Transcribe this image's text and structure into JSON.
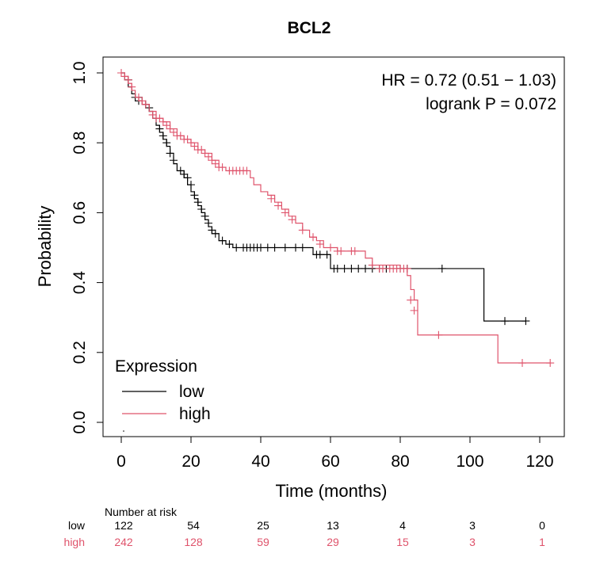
{
  "chart_data": {
    "type": "line",
    "subtype": "kaplan-meier",
    "title": "BCL2",
    "xlabel": "Time (months)",
    "ylabel": "Probability",
    "xlim": [
      0,
      120
    ],
    "ylim": [
      0,
      1
    ],
    "xticks": [
      0,
      20,
      40,
      60,
      80,
      100,
      120
    ],
    "yticks": [
      0.0,
      0.2,
      0.4,
      0.6,
      0.8,
      1.0
    ],
    "ytick_labels": [
      "0.0",
      "0.2",
      "0.4",
      "0.6",
      "0.8",
      "1.0"
    ],
    "annotations": [
      "HR = 0.72 (0.51 − 1.03)",
      "logrank P = 0.072"
    ],
    "legend": {
      "title": "Expression",
      "position": "bottom-left",
      "entries": [
        "low",
        "high"
      ]
    },
    "series": [
      {
        "name": "low",
        "color": "#000000",
        "steps": [
          [
            0,
            1.0
          ],
          [
            1,
            0.98
          ],
          [
            2,
            0.96
          ],
          [
            3,
            0.94
          ],
          [
            4,
            0.93
          ],
          [
            6,
            0.91
          ],
          [
            8,
            0.89
          ],
          [
            9,
            0.87
          ],
          [
            10,
            0.85
          ],
          [
            11,
            0.83
          ],
          [
            12,
            0.81
          ],
          [
            13,
            0.79
          ],
          [
            14,
            0.77
          ],
          [
            15,
            0.74
          ],
          [
            16,
            0.72
          ],
          [
            18,
            0.7
          ],
          [
            19,
            0.68
          ],
          [
            20,
            0.66
          ],
          [
            21,
            0.64
          ],
          [
            22,
            0.62
          ],
          [
            23,
            0.6
          ],
          [
            24,
            0.58
          ],
          [
            25,
            0.56
          ],
          [
            26,
            0.54
          ],
          [
            28,
            0.52
          ],
          [
            30,
            0.51
          ],
          [
            32,
            0.5
          ],
          [
            55,
            0.48
          ],
          [
            60,
            0.44
          ],
          [
            104,
            0.29
          ],
          [
            116,
            0.29
          ]
        ],
        "censored": [
          [
            2,
            0.98
          ],
          [
            4,
            0.93
          ],
          [
            5,
            0.92
          ],
          [
            7,
            0.91
          ],
          [
            8,
            0.9
          ],
          [
            11,
            0.84
          ],
          [
            12,
            0.82
          ],
          [
            13,
            0.8
          ],
          [
            14,
            0.77
          ],
          [
            15,
            0.75
          ],
          [
            17,
            0.72
          ],
          [
            18,
            0.71
          ],
          [
            19,
            0.7
          ],
          [
            20,
            0.68
          ],
          [
            21,
            0.65
          ],
          [
            22,
            0.63
          ],
          [
            23,
            0.61
          ],
          [
            24,
            0.59
          ],
          [
            25,
            0.57
          ],
          [
            26,
            0.55
          ],
          [
            27,
            0.54
          ],
          [
            29,
            0.52
          ],
          [
            31,
            0.51
          ],
          [
            33,
            0.5
          ],
          [
            35,
            0.5
          ],
          [
            36,
            0.5
          ],
          [
            37,
            0.5
          ],
          [
            38,
            0.5
          ],
          [
            39,
            0.5
          ],
          [
            40,
            0.5
          ],
          [
            42,
            0.5
          ],
          [
            44,
            0.5
          ],
          [
            47,
            0.5
          ],
          [
            50,
            0.5
          ],
          [
            52,
            0.5
          ],
          [
            56,
            0.48
          ],
          [
            57,
            0.48
          ],
          [
            59,
            0.48
          ],
          [
            61,
            0.44
          ],
          [
            62,
            0.44
          ],
          [
            64,
            0.44
          ],
          [
            66,
            0.44
          ],
          [
            68,
            0.44
          ],
          [
            70,
            0.44
          ],
          [
            72,
            0.44
          ],
          [
            74,
            0.44
          ],
          [
            76,
            0.44
          ],
          [
            80,
            0.44
          ],
          [
            82,
            0.44
          ],
          [
            92,
            0.44
          ],
          [
            110,
            0.29
          ],
          [
            116,
            0.29
          ]
        ]
      },
      {
        "name": "high",
        "color": "#DF536B",
        "steps": [
          [
            0,
            1.0
          ],
          [
            1,
            0.99
          ],
          [
            2,
            0.97
          ],
          [
            3,
            0.95
          ],
          [
            4,
            0.93
          ],
          [
            5,
            0.92
          ],
          [
            6,
            0.91
          ],
          [
            8,
            0.89
          ],
          [
            10,
            0.87
          ],
          [
            12,
            0.86
          ],
          [
            14,
            0.84
          ],
          [
            16,
            0.82
          ],
          [
            18,
            0.81
          ],
          [
            20,
            0.8
          ],
          [
            22,
            0.78
          ],
          [
            24,
            0.77
          ],
          [
            26,
            0.75
          ],
          [
            28,
            0.73
          ],
          [
            30,
            0.72
          ],
          [
            37,
            0.7
          ],
          [
            38,
            0.68
          ],
          [
            40,
            0.66
          ],
          [
            42,
            0.65
          ],
          [
            44,
            0.63
          ],
          [
            46,
            0.61
          ],
          [
            48,
            0.59
          ],
          [
            50,
            0.57
          ],
          [
            52,
            0.55
          ],
          [
            54,
            0.53
          ],
          [
            56,
            0.52
          ],
          [
            58,
            0.5
          ],
          [
            62,
            0.49
          ],
          [
            70,
            0.47
          ],
          [
            72,
            0.45
          ],
          [
            80,
            0.44
          ],
          [
            82,
            0.42
          ],
          [
            83,
            0.38
          ],
          [
            84,
            0.35
          ],
          [
            85,
            0.25
          ],
          [
            108,
            0.17
          ],
          [
            123,
            0.17
          ]
        ],
        "censored": [
          [
            0,
            1.0
          ],
          [
            1,
            0.99
          ],
          [
            2,
            0.98
          ],
          [
            3,
            0.96
          ],
          [
            5,
            0.93
          ],
          [
            6,
            0.92
          ],
          [
            7,
            0.91
          ],
          [
            9,
            0.88
          ],
          [
            10,
            0.87
          ],
          [
            11,
            0.87
          ],
          [
            12,
            0.86
          ],
          [
            13,
            0.85
          ],
          [
            14,
            0.84
          ],
          [
            15,
            0.83
          ],
          [
            16,
            0.82
          ],
          [
            17,
            0.82
          ],
          [
            18,
            0.81
          ],
          [
            19,
            0.81
          ],
          [
            20,
            0.8
          ],
          [
            21,
            0.79
          ],
          [
            22,
            0.78
          ],
          [
            23,
            0.78
          ],
          [
            24,
            0.77
          ],
          [
            25,
            0.76
          ],
          [
            26,
            0.75
          ],
          [
            27,
            0.74
          ],
          [
            28,
            0.73
          ],
          [
            29,
            0.73
          ],
          [
            31,
            0.72
          ],
          [
            32,
            0.72
          ],
          [
            33,
            0.72
          ],
          [
            34,
            0.72
          ],
          [
            35,
            0.72
          ],
          [
            36,
            0.72
          ],
          [
            43,
            0.64
          ],
          [
            45,
            0.62
          ],
          [
            47,
            0.6
          ],
          [
            49,
            0.58
          ],
          [
            52,
            0.55
          ],
          [
            55,
            0.53
          ],
          [
            57,
            0.51
          ],
          [
            60,
            0.5
          ],
          [
            62,
            0.49
          ],
          [
            63,
            0.49
          ],
          [
            66,
            0.49
          ],
          [
            67,
            0.49
          ],
          [
            72,
            0.45
          ],
          [
            74,
            0.44
          ],
          [
            75,
            0.44
          ],
          [
            77,
            0.44
          ],
          [
            78,
            0.44
          ],
          [
            79,
            0.44
          ],
          [
            80,
            0.44
          ],
          [
            81,
            0.44
          ],
          [
            82,
            0.44
          ],
          [
            83,
            0.35
          ],
          [
            84,
            0.32
          ],
          [
            91,
            0.25
          ],
          [
            115,
            0.17
          ],
          [
            123,
            0.17
          ]
        ]
      }
    ],
    "risk_table": {
      "title": "Number at risk",
      "times": [
        0,
        20,
        40,
        60,
        80,
        100,
        120
      ],
      "rows": [
        {
          "name": "low",
          "color": "#000000",
          "values": [
            "122",
            "54",
            "25",
            "13",
            "4",
            "3",
            "0"
          ]
        },
        {
          "name": "high",
          "color": "#DF536B",
          "values": [
            "242",
            "128",
            "59",
            "29",
            "15",
            "3",
            "1"
          ]
        }
      ]
    }
  }
}
